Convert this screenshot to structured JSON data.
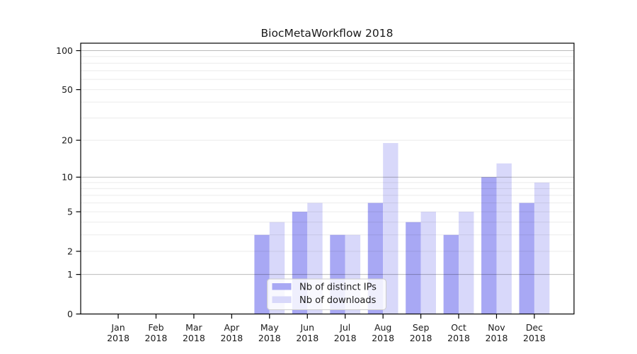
{
  "chart_data": {
    "type": "bar",
    "title": "BiocMetaWorkflow 2018",
    "categories": [
      "Jan",
      "Feb",
      "Mar",
      "Apr",
      "May",
      "Jun",
      "Jul",
      "Aug",
      "Sep",
      "Oct",
      "Nov",
      "Dec"
    ],
    "year_label": "2018",
    "series": [
      {
        "name": "Nb of distinct IPs",
        "color": "#a8a8f4",
        "values": [
          0,
          0,
          0,
          0,
          3,
          5,
          3,
          6,
          4,
          3,
          10,
          6
        ]
      },
      {
        "name": "Nb of downloads",
        "color": "#d8d8fa",
        "values": [
          0,
          0,
          0,
          0,
          4,
          6,
          3,
          19,
          5,
          5,
          13,
          9
        ]
      }
    ],
    "xlabel": "",
    "ylabel": "",
    "scale": "log1p",
    "ylim": [
      0,
      113
    ],
    "yticks": [
      0,
      1,
      2,
      5,
      10,
      20,
      50,
      100
    ],
    "minor_gridlines": [
      3,
      4,
      6,
      7,
      8,
      9,
      30,
      40,
      60,
      70,
      80,
      90
    ],
    "decade_gridlines": [
      1,
      10,
      100
    ],
    "grid": "horizontal",
    "legend_position": "inside-bottom-center"
  },
  "colors": {
    "background": "#ffffff",
    "frame": "#000000",
    "tick_text": "#1a1a1a",
    "minor_grid": "rgba(0,0,0,0.08)",
    "major_grid": "rgba(0,0,0,0.27)",
    "legend_bg": "rgba(255,255,255,0.82)",
    "legend_border": "#cccccc"
  }
}
